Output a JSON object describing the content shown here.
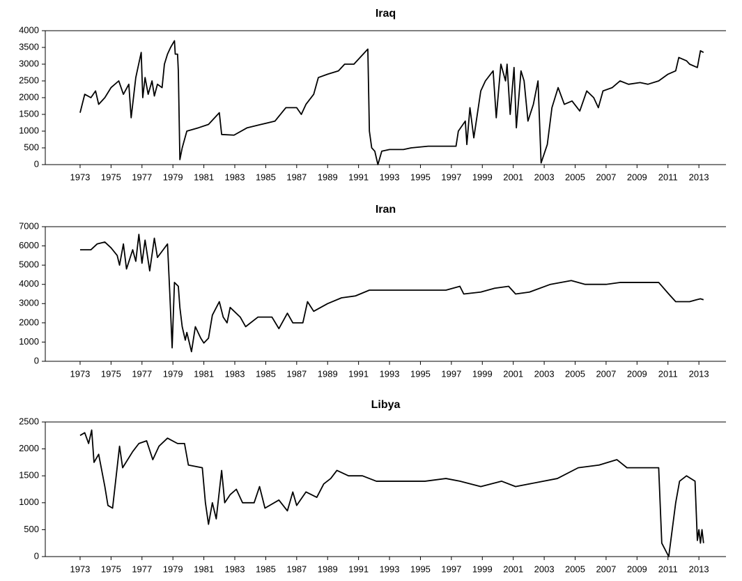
{
  "chart_data": [
    {
      "type": "line",
      "title": "Iraq",
      "color": "#000000",
      "x": [
        1973.0,
        1973.3,
        1973.7,
        1974.0,
        1974.2,
        1974.6,
        1975.0,
        1975.5,
        1975.8,
        1976.15,
        1976.3,
        1976.6,
        1976.95,
        1977.05,
        1977.2,
        1977.4,
        1977.65,
        1977.8,
        1978.0,
        1978.3,
        1978.45,
        1978.65,
        1978.85,
        1979.1,
        1979.15,
        1979.3,
        1979.35,
        1979.45,
        1979.6,
        1979.9,
        1980.65,
        1981.3,
        1982.0,
        1982.15,
        1982.95,
        1983.8,
        1984.7,
        1985.6,
        1986.3,
        1987.0,
        1987.3,
        1987.6,
        1988.1,
        1988.4,
        1989.0,
        1989.7,
        1990.1,
        1990.7,
        1991.6,
        1991.7,
        1991.85,
        1992.05,
        1992.25,
        1992.5,
        1993.0,
        1993.9,
        1994.4,
        1995.5,
        1996.65,
        1997.3,
        1997.45,
        1997.9,
        1998.0,
        1998.2,
        1998.45,
        1998.9,
        1999.2,
        1999.7,
        1999.9,
        2000.2,
        2000.5,
        2000.6,
        2000.8,
        2001.05,
        2001.2,
        2001.5,
        2001.7,
        2001.95,
        2002.3,
        2002.6,
        2002.8,
        2003.2,
        2003.5,
        2003.9,
        2004.3,
        2004.8,
        2005.3,
        2005.75,
        2006.2,
        2006.5,
        2006.8,
        2007.4,
        2007.9,
        2008.45,
        2009.2,
        2009.7,
        2010.4,
        2011.0,
        2011.5,
        2011.7,
        2012.2,
        2012.4,
        2012.9,
        2013.1,
        2013.3
      ],
      "values": [
        1550,
        2100,
        2000,
        2200,
        1800,
        2000,
        2300,
        2500,
        2100,
        2400,
        1400,
        2600,
        3350,
        2000,
        2600,
        2100,
        2500,
        2050,
        2400,
        2300,
        3000,
        3300,
        3500,
        3700,
        3300,
        3300,
        2800,
        150,
        500,
        1000,
        1100,
        1200,
        1550,
        900,
        880,
        1100,
        1200,
        1300,
        1700,
        1700,
        1500,
        1800,
        2100,
        2600,
        2700,
        2800,
        3000,
        3000,
        3450,
        1000,
        500,
        400,
        0,
        400,
        450,
        450,
        500,
        550,
        550,
        550,
        1000,
        1300,
        600,
        1700,
        800,
        2200,
        2500,
        2800,
        1400,
        3000,
        2500,
        3000,
        1500,
        2900,
        1100,
        2800,
        2500,
        1300,
        1800,
        2500,
        50,
        600,
        1700,
        2300,
        1800,
        1900,
        1600,
        2200,
        2000,
        1700,
        2200,
        2300,
        2500,
        2400,
        2450,
        2400,
        2500,
        2700,
        2800,
        3200,
        3100,
        3000,
        2900,
        3400,
        3350
      ],
      "xlim": [
        1970.75,
        2014.75
      ],
      "xticks": [
        1973,
        1975,
        1977,
        1979,
        1981,
        1983,
        1985,
        1987,
        1989,
        1991,
        1993,
        1995,
        1997,
        1999,
        2001,
        2003,
        2005,
        2007,
        2009,
        2011,
        2013
      ],
      "ylim": [
        0,
        4000
      ],
      "yticks": [
        0,
        500,
        1000,
        1500,
        2000,
        2500,
        3000,
        3500,
        4000
      ]
    },
    {
      "type": "line",
      "title": "Iran",
      "color": "#000000",
      "x": [
        1973.0,
        1973.7,
        1974.1,
        1974.6,
        1975.0,
        1975.4,
        1975.55,
        1975.8,
        1976.0,
        1976.4,
        1976.6,
        1976.8,
        1977.0,
        1977.2,
        1977.5,
        1977.8,
        1978.0,
        1978.65,
        1978.8,
        1978.95,
        1979.1,
        1979.35,
        1979.45,
        1979.6,
        1979.8,
        1979.9,
        1980.2,
        1980.45,
        1980.8,
        1981.0,
        1981.3,
        1981.55,
        1982.0,
        1982.25,
        1982.5,
        1982.7,
        1983.35,
        1983.7,
        1984.5,
        1985.4,
        1985.85,
        1986.4,
        1986.75,
        1987.4,
        1987.7,
        1988.1,
        1989.0,
        1989.9,
        1990.8,
        1991.7,
        1993.0,
        1994.85,
        1996.65,
        1997.55,
        1997.8,
        1998.9,
        1999.8,
        2000.7,
        2001.15,
        2002.05,
        2003.4,
        2004.75,
        2005.65,
        2007.0,
        2007.9,
        2009.25,
        2010.4,
        2011.05,
        2011.5,
        2012.4,
        2012.85,
        2013.1,
        2013.3
      ],
      "values": [
        5800,
        5800,
        6100,
        6200,
        5900,
        5500,
        5000,
        6100,
        4800,
        5800,
        5200,
        6600,
        5100,
        6300,
        4700,
        6400,
        5400,
        6100,
        3500,
        700,
        4100,
        3900,
        2800,
        1800,
        1100,
        1500,
        500,
        1800,
        1200,
        950,
        1200,
        2400,
        3100,
        2300,
        2000,
        2800,
        2300,
        1800,
        2300,
        2300,
        1700,
        2500,
        2000,
        2000,
        3100,
        2600,
        3000,
        3300,
        3400,
        3700,
        3700,
        3700,
        3700,
        3900,
        3500,
        3600,
        3800,
        3900,
        3500,
        3600,
        4000,
        4200,
        4000,
        4000,
        4100,
        4100,
        4100,
        3500,
        3100,
        3100,
        3200,
        3250,
        3200
      ],
      "xlim": [
        1970.75,
        2014.75
      ],
      "xticks": [
        1973,
        1975,
        1977,
        1979,
        1981,
        1983,
        1985,
        1987,
        1989,
        1991,
        1993,
        1995,
        1997,
        1999,
        2001,
        2003,
        2005,
        2007,
        2009,
        2011,
        2013
      ],
      "ylim": [
        0,
        7000
      ],
      "yticks": [
        0,
        1000,
        2000,
        3000,
        4000,
        5000,
        6000,
        7000
      ]
    },
    {
      "type": "line",
      "title": "Libya",
      "color": "#000000",
      "x": [
        1973.0,
        1973.3,
        1973.55,
        1973.75,
        1973.9,
        1974.2,
        1974.6,
        1974.8,
        1975.1,
        1975.55,
        1975.75,
        1976.4,
        1976.8,
        1977.3,
        1977.7,
        1978.1,
        1978.65,
        1979.3,
        1979.75,
        1980.0,
        1980.9,
        1981.1,
        1981.3,
        1981.55,
        1981.8,
        1982.15,
        1982.35,
        1982.7,
        1983.1,
        1983.5,
        1984.25,
        1984.6,
        1984.95,
        1985.85,
        1986.4,
        1986.75,
        1987.0,
        1987.6,
        1988.3,
        1988.75,
        1989.2,
        1989.6,
        1990.35,
        1991.25,
        1992.15,
        1993.5,
        1995.3,
        1996.65,
        1997.55,
        1998.9,
        2000.25,
        2001.15,
        2002.05,
        2003.85,
        2005.2,
        2006.55,
        2007.7,
        2008.35,
        2010.4,
        2010.6,
        2011.05,
        2011.5,
        2011.75,
        2012.2,
        2012.75,
        2012.9,
        2013.0,
        2013.1,
        2013.2,
        2013.3
      ],
      "values": [
        2250,
        2300,
        2100,
        2350,
        1750,
        1900,
        1300,
        950,
        900,
        2050,
        1650,
        1950,
        2100,
        2150,
        1800,
        2050,
        2200,
        2100,
        2100,
        1700,
        1650,
        1000,
        600,
        1000,
        700,
        1600,
        1000,
        1150,
        1250,
        1000,
        1000,
        1300,
        900,
        1050,
        850,
        1200,
        950,
        1200,
        1100,
        1350,
        1450,
        1600,
        1500,
        1500,
        1400,
        1400,
        1400,
        1450,
        1400,
        1300,
        1400,
        1300,
        1350,
        1450,
        1650,
        1700,
        1800,
        1650,
        1650,
        250,
        0,
        1000,
        1400,
        1500,
        1400,
        300,
        500,
        250,
        500,
        250
      ],
      "xlim": [
        1970.75,
        2014.75
      ],
      "xticks": [
        1973,
        1975,
        1977,
        1979,
        1981,
        1983,
        1985,
        1987,
        1989,
        1991,
        1993,
        1995,
        1997,
        1999,
        2001,
        2003,
        2005,
        2007,
        2009,
        2011,
        2013
      ],
      "ylim": [
        0,
        2500
      ],
      "yticks": [
        0,
        500,
        1000,
        1500,
        2000,
        2500
      ]
    }
  ]
}
